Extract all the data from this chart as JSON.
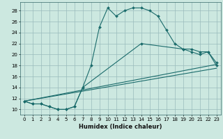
{
  "xlabel": "Humidex (Indice chaleur)",
  "bg_color": "#cce8e0",
  "grid_color": "#99bbbb",
  "line_color": "#1a6b6b",
  "xlim": [
    -0.5,
    23.5
  ],
  "ylim": [
    9,
    29.5
  ],
  "yticks": [
    10,
    12,
    14,
    16,
    18,
    20,
    22,
    24,
    26,
    28
  ],
  "xticks": [
    0,
    1,
    2,
    3,
    4,
    5,
    6,
    7,
    8,
    9,
    10,
    11,
    12,
    13,
    14,
    15,
    16,
    17,
    18,
    19,
    20,
    21,
    22,
    23
  ],
  "line1_x": [
    0,
    1,
    2,
    3,
    4,
    5,
    6,
    7,
    8,
    9,
    10,
    11,
    12,
    13,
    14,
    15,
    16,
    17,
    18,
    19,
    20,
    21,
    22,
    23
  ],
  "line1_y": [
    11.5,
    11,
    11,
    10.5,
    10,
    10,
    10.5,
    14,
    18,
    25,
    28.5,
    27,
    28,
    28.5,
    28.5,
    28,
    27,
    24.5,
    22,
    21,
    20.5,
    20,
    20.5,
    18
  ],
  "line2_x": [
    0,
    1,
    2,
    3,
    4,
    5,
    6,
    7,
    14,
    19,
    20,
    21,
    22,
    23
  ],
  "line2_y": [
    11.5,
    11,
    11,
    10.5,
    10,
    10,
    10.5,
    14,
    22,
    21,
    21,
    20.5,
    20.5,
    18.5
  ],
  "line3_x": [
    0,
    23
  ],
  "line3_y": [
    11.5,
    18.2
  ],
  "line4_x": [
    0,
    23
  ],
  "line4_y": [
    11.5,
    17.5
  ]
}
